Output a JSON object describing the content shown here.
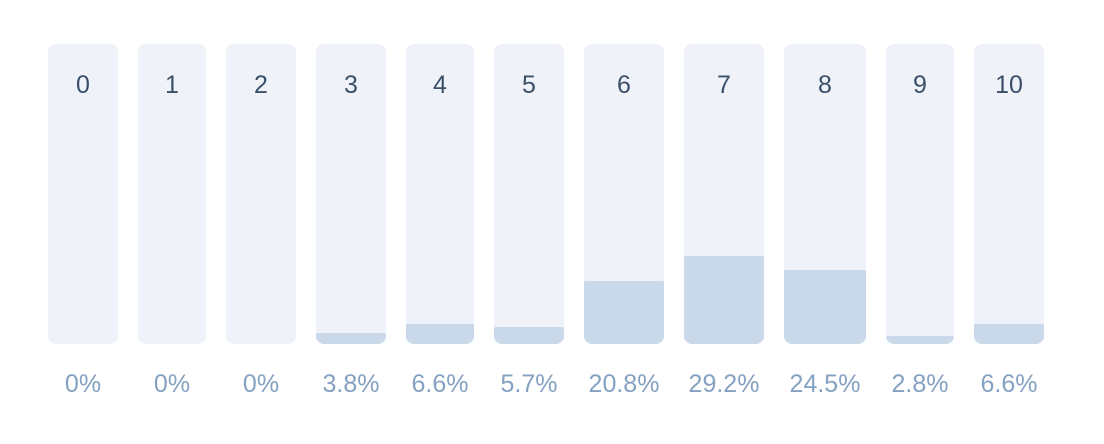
{
  "chart_data": {
    "type": "bar",
    "categories": [
      "0",
      "1",
      "2",
      "3",
      "4",
      "5",
      "6",
      "7",
      "8",
      "9",
      "10"
    ],
    "values": [
      0,
      0,
      0,
      3.8,
      6.6,
      5.7,
      20.8,
      29.2,
      24.5,
      2.8,
      6.6
    ],
    "value_labels": [
      "0%",
      "0%",
      "0%",
      "3.8%",
      "6.6%",
      "5.7%",
      "20.8%",
      "29.2%",
      "24.5%",
      "2.8%",
      "6.6%"
    ],
    "grid": false,
    "legend": "none"
  },
  "colors": {
    "track": "#eff3f9",
    "fill": "#c9d9ea",
    "category_text": "#3b5068",
    "percent_text": "#84a1c1"
  }
}
